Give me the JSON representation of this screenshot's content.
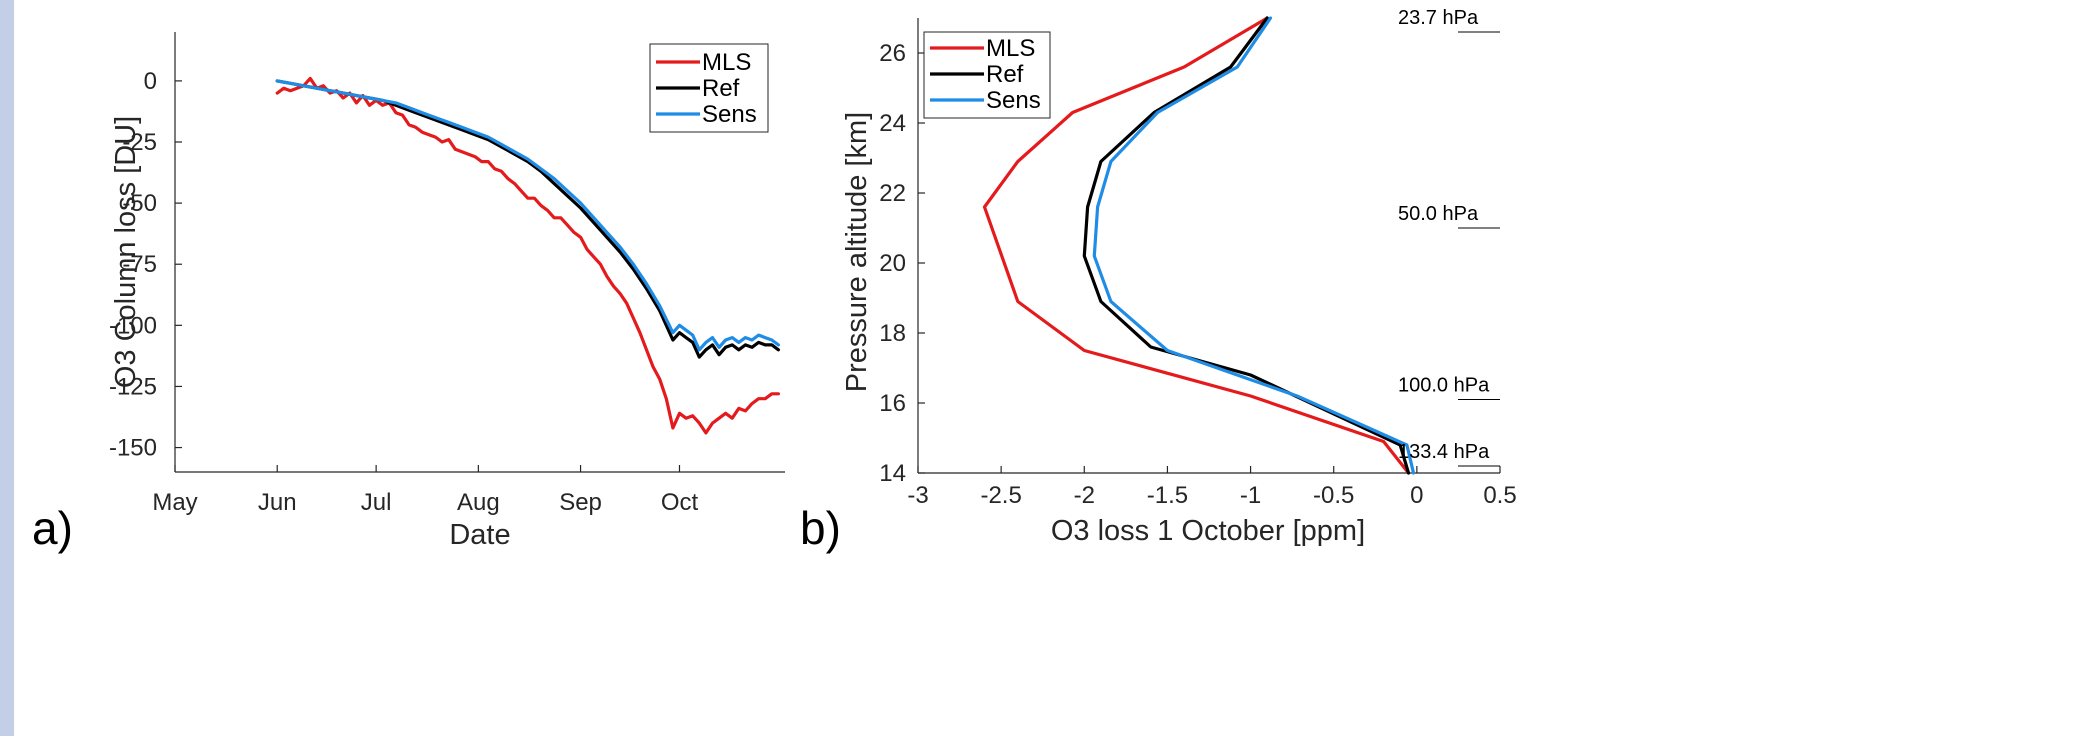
{
  "colors": {
    "MLS": "#e41a1c",
    "Ref": "#000000",
    "Sens": "#1f8ce6",
    "axis": "#262626"
  },
  "chart_data": [
    {
      "type": "line",
      "panel_label": "a)",
      "xlabel": "Date",
      "ylabel": "O3 Column loss [DU]",
      "x_ticks": [
        "May",
        "Jun",
        "Jul",
        "Aug",
        "Sep",
        "Oct"
      ],
      "x_tick_dates": [
        "05-01",
        "06-01",
        "07-01",
        "08-01",
        "09-01",
        "10-01"
      ],
      "xlim": [
        "05-01",
        "11-02"
      ],
      "ylim": [
        -160,
        20
      ],
      "y_ticks": [
        "0",
        "-25",
        "-50",
        "-75",
        "-100",
        "-125",
        "-150"
      ],
      "y_tick_values": [
        0,
        -25,
        -50,
        -75,
        -100,
        -125,
        -150
      ],
      "legend_position": "top-right",
      "series": [
        {
          "name": "MLS",
          "color": "#e41a1c",
          "points": [
            [
              "06-01",
              -5
            ],
            [
              "06-03",
              -3
            ],
            [
              "06-05",
              -4
            ],
            [
              "06-07",
              -3
            ],
            [
              "06-09",
              -2
            ],
            [
              "06-11",
              1
            ],
            [
              "06-13",
              -3
            ],
            [
              "06-15",
              -2
            ],
            [
              "06-17",
              -5
            ],
            [
              "06-19",
              -4
            ],
            [
              "06-21",
              -7
            ],
            [
              "06-23",
              -5
            ],
            [
              "06-25",
              -9
            ],
            [
              "06-27",
              -6
            ],
            [
              "06-29",
              -10
            ],
            [
              "07-01",
              -8
            ],
            [
              "07-03",
              -10
            ],
            [
              "07-05",
              -9
            ],
            [
              "07-07",
              -13
            ],
            [
              "07-09",
              -14
            ],
            [
              "07-11",
              -18
            ],
            [
              "07-13",
              -19
            ],
            [
              "07-15",
              -21
            ],
            [
              "07-17",
              -22
            ],
            [
              "07-19",
              -23
            ],
            [
              "07-21",
              -25
            ],
            [
              "07-23",
              -24
            ],
            [
              "07-25",
              -28
            ],
            [
              "07-27",
              -29
            ],
            [
              "07-29",
              -30
            ],
            [
              "07-31",
              -31
            ],
            [
              "08-02",
              -33
            ],
            [
              "08-04",
              -33
            ],
            [
              "08-06",
              -36
            ],
            [
              "08-08",
              -37
            ],
            [
              "08-10",
              -40
            ],
            [
              "08-12",
              -42
            ],
            [
              "08-14",
              -45
            ],
            [
              "08-16",
              -48
            ],
            [
              "08-18",
              -48
            ],
            [
              "08-20",
              -51
            ],
            [
              "08-22",
              -53
            ],
            [
              "08-24",
              -56
            ],
            [
              "08-26",
              -56
            ],
            [
              "08-28",
              -59
            ],
            [
              "08-30",
              -62
            ],
            [
              "09-01",
              -64
            ],
            [
              "09-03",
              -69
            ],
            [
              "09-05",
              -72
            ],
            [
              "09-07",
              -75
            ],
            [
              "09-09",
              -80
            ],
            [
              "09-11",
              -84
            ],
            [
              "09-13",
              -87
            ],
            [
              "09-15",
              -91
            ],
            [
              "09-17",
              -97
            ],
            [
              "09-19",
              -103
            ],
            [
              "09-21",
              -110
            ],
            [
              "09-23",
              -117
            ],
            [
              "09-25",
              -122
            ],
            [
              "09-27",
              -130
            ],
            [
              "09-29",
              -142
            ],
            [
              "10-01",
              -136
            ],
            [
              "10-03",
              -138
            ],
            [
              "10-05",
              -137
            ],
            [
              "10-07",
              -140
            ],
            [
              "10-09",
              -144
            ],
            [
              "10-11",
              -140
            ],
            [
              "10-13",
              -138
            ],
            [
              "10-15",
              -136
            ],
            [
              "10-17",
              -138
            ],
            [
              "10-19",
              -134
            ],
            [
              "10-21",
              -135
            ],
            [
              "10-23",
              -132
            ],
            [
              "10-25",
              -130
            ],
            [
              "10-27",
              -130
            ],
            [
              "10-29",
              -128
            ],
            [
              "10-31",
              -128
            ]
          ]
        },
        {
          "name": "Ref",
          "color": "#000000",
          "points": [
            [
              "06-01",
              0
            ],
            [
              "06-05",
              -1
            ],
            [
              "06-09",
              -2
            ],
            [
              "06-13",
              -3
            ],
            [
              "06-17",
              -4
            ],
            [
              "06-21",
              -5
            ],
            [
              "06-25",
              -6
            ],
            [
              "06-29",
              -7
            ],
            [
              "07-03",
              -8
            ],
            [
              "07-07",
              -10
            ],
            [
              "07-11",
              -12
            ],
            [
              "07-15",
              -14
            ],
            [
              "07-19",
              -16
            ],
            [
              "07-23",
              -18
            ],
            [
              "07-27",
              -20
            ],
            [
              "07-31",
              -22
            ],
            [
              "08-04",
              -24
            ],
            [
              "08-08",
              -27
            ],
            [
              "08-12",
              -30
            ],
            [
              "08-16",
              -33
            ],
            [
              "08-20",
              -37
            ],
            [
              "08-24",
              -42
            ],
            [
              "08-28",
              -47
            ],
            [
              "09-01",
              -52
            ],
            [
              "09-05",
              -58
            ],
            [
              "09-09",
              -64
            ],
            [
              "09-13",
              -70
            ],
            [
              "09-17",
              -77
            ],
            [
              "09-21",
              -85
            ],
            [
              "09-25",
              -94
            ],
            [
              "09-29",
              -106
            ],
            [
              "10-01",
              -103
            ],
            [
              "10-03",
              -105
            ],
            [
              "10-05",
              -107
            ],
            [
              "10-07",
              -113
            ],
            [
              "10-09",
              -110
            ],
            [
              "10-11",
              -108
            ],
            [
              "10-13",
              -112
            ],
            [
              "10-15",
              -109
            ],
            [
              "10-17",
              -108
            ],
            [
              "10-19",
              -110
            ],
            [
              "10-21",
              -108
            ],
            [
              "10-23",
              -109
            ],
            [
              "10-25",
              -107
            ],
            [
              "10-27",
              -108
            ],
            [
              "10-29",
              -108
            ],
            [
              "10-31",
              -110
            ]
          ]
        },
        {
          "name": "Sens",
          "color": "#1f8ce6",
          "points": [
            [
              "06-01",
              0
            ],
            [
              "06-05",
              -1
            ],
            [
              "06-09",
              -2
            ],
            [
              "06-13",
              -3
            ],
            [
              "06-17",
              -4
            ],
            [
              "06-21",
              -5
            ],
            [
              "06-25",
              -6
            ],
            [
              "06-29",
              -7
            ],
            [
              "07-03",
              -8
            ],
            [
              "07-07",
              -9
            ],
            [
              "07-11",
              -11
            ],
            [
              "07-15",
              -13
            ],
            [
              "07-19",
              -15
            ],
            [
              "07-23",
              -17
            ],
            [
              "07-27",
              -19
            ],
            [
              "07-31",
              -21
            ],
            [
              "08-04",
              -23
            ],
            [
              "08-08",
              -26
            ],
            [
              "08-12",
              -29
            ],
            [
              "08-16",
              -32
            ],
            [
              "08-20",
              -36
            ],
            [
              "08-24",
              -40
            ],
            [
              "08-28",
              -45
            ],
            [
              "09-01",
              -50
            ],
            [
              "09-05",
              -56
            ],
            [
              "09-09",
              -62
            ],
            [
              "09-13",
              -68
            ],
            [
              "09-17",
              -75
            ],
            [
              "09-21",
              -83
            ],
            [
              "09-25",
              -92
            ],
            [
              "09-29",
              -103
            ],
            [
              "10-01",
              -100
            ],
            [
              "10-03",
              -102
            ],
            [
              "10-05",
              -104
            ],
            [
              "10-07",
              -110
            ],
            [
              "10-09",
              -107
            ],
            [
              "10-11",
              -105
            ],
            [
              "10-13",
              -109
            ],
            [
              "10-15",
              -106
            ],
            [
              "10-17",
              -105
            ],
            [
              "10-19",
              -107
            ],
            [
              "10-21",
              -105
            ],
            [
              "10-23",
              -106
            ],
            [
              "10-25",
              -104
            ],
            [
              "10-27",
              -105
            ],
            [
              "10-29",
              -106
            ],
            [
              "10-31",
              -108
            ]
          ]
        }
      ]
    },
    {
      "type": "line",
      "panel_label": "b)",
      "xlabel": "O3 loss 1 October [ppm]",
      "ylabel": "Pressure altitude [km]",
      "xlim": [
        -3,
        0.5
      ],
      "ylim": [
        14,
        27
      ],
      "x_ticks": [
        "-3",
        "-2.5",
        "-2",
        "-1.5",
        "-1",
        "-0.5",
        "0",
        "0.5"
      ],
      "x_tick_values": [
        -3,
        -2.5,
        -2,
        -1.5,
        -1,
        -0.5,
        0,
        0.5
      ],
      "y_ticks": [
        "14",
        "16",
        "18",
        "20",
        "22",
        "24",
        "26"
      ],
      "y_tick_values": [
        14,
        16,
        18,
        20,
        22,
        24,
        26
      ],
      "legend_position": "top-left",
      "pressure_levels": [
        {
          "label": "23.7 hPa",
          "altitude_km": 26.6
        },
        {
          "label": "50.0 hPa",
          "altitude_km": 21.0
        },
        {
          "label": "100.0 hPa",
          "altitude_km": 16.1
        },
        {
          "label": "133.4 hPa",
          "altitude_km": 14.2
        }
      ],
      "series": [
        {
          "name": "MLS",
          "color": "#e41a1c",
          "points": [
            [
              -0.05,
              14
            ],
            [
              -0.2,
              14.9
            ],
            [
              -1.0,
              16.2
            ],
            [
              -2.0,
              17.5
            ],
            [
              -2.4,
              18.9
            ],
            [
              -2.6,
              21.6
            ],
            [
              -2.4,
              22.9
            ],
            [
              -2.07,
              24.3
            ],
            [
              -1.4,
              25.6
            ],
            [
              -0.9,
              27
            ]
          ]
        },
        {
          "name": "Ref",
          "color": "#000000",
          "points": [
            [
              -0.05,
              14
            ],
            [
              -0.1,
              14.8
            ],
            [
              -1.0,
              16.8
            ],
            [
              -1.6,
              17.6
            ],
            [
              -1.9,
              18.9
            ],
            [
              -2.0,
              20.2
            ],
            [
              -1.98,
              21.6
            ],
            [
              -1.9,
              22.9
            ],
            [
              -1.58,
              24.3
            ],
            [
              -1.12,
              25.6
            ],
            [
              -0.9,
              27
            ]
          ]
        },
        {
          "name": "Sens",
          "color": "#1f8ce6",
          "points": [
            [
              -0.02,
              14
            ],
            [
              -0.06,
              14.8
            ],
            [
              -0.72,
              16.2
            ],
            [
              -1.5,
              17.5
            ],
            [
              -1.84,
              18.9
            ],
            [
              -1.94,
              20.2
            ],
            [
              -1.92,
              21.6
            ],
            [
              -1.84,
              22.9
            ],
            [
              -1.56,
              24.3
            ],
            [
              -1.08,
              25.6
            ],
            [
              -0.88,
              27
            ]
          ]
        }
      ]
    }
  ]
}
